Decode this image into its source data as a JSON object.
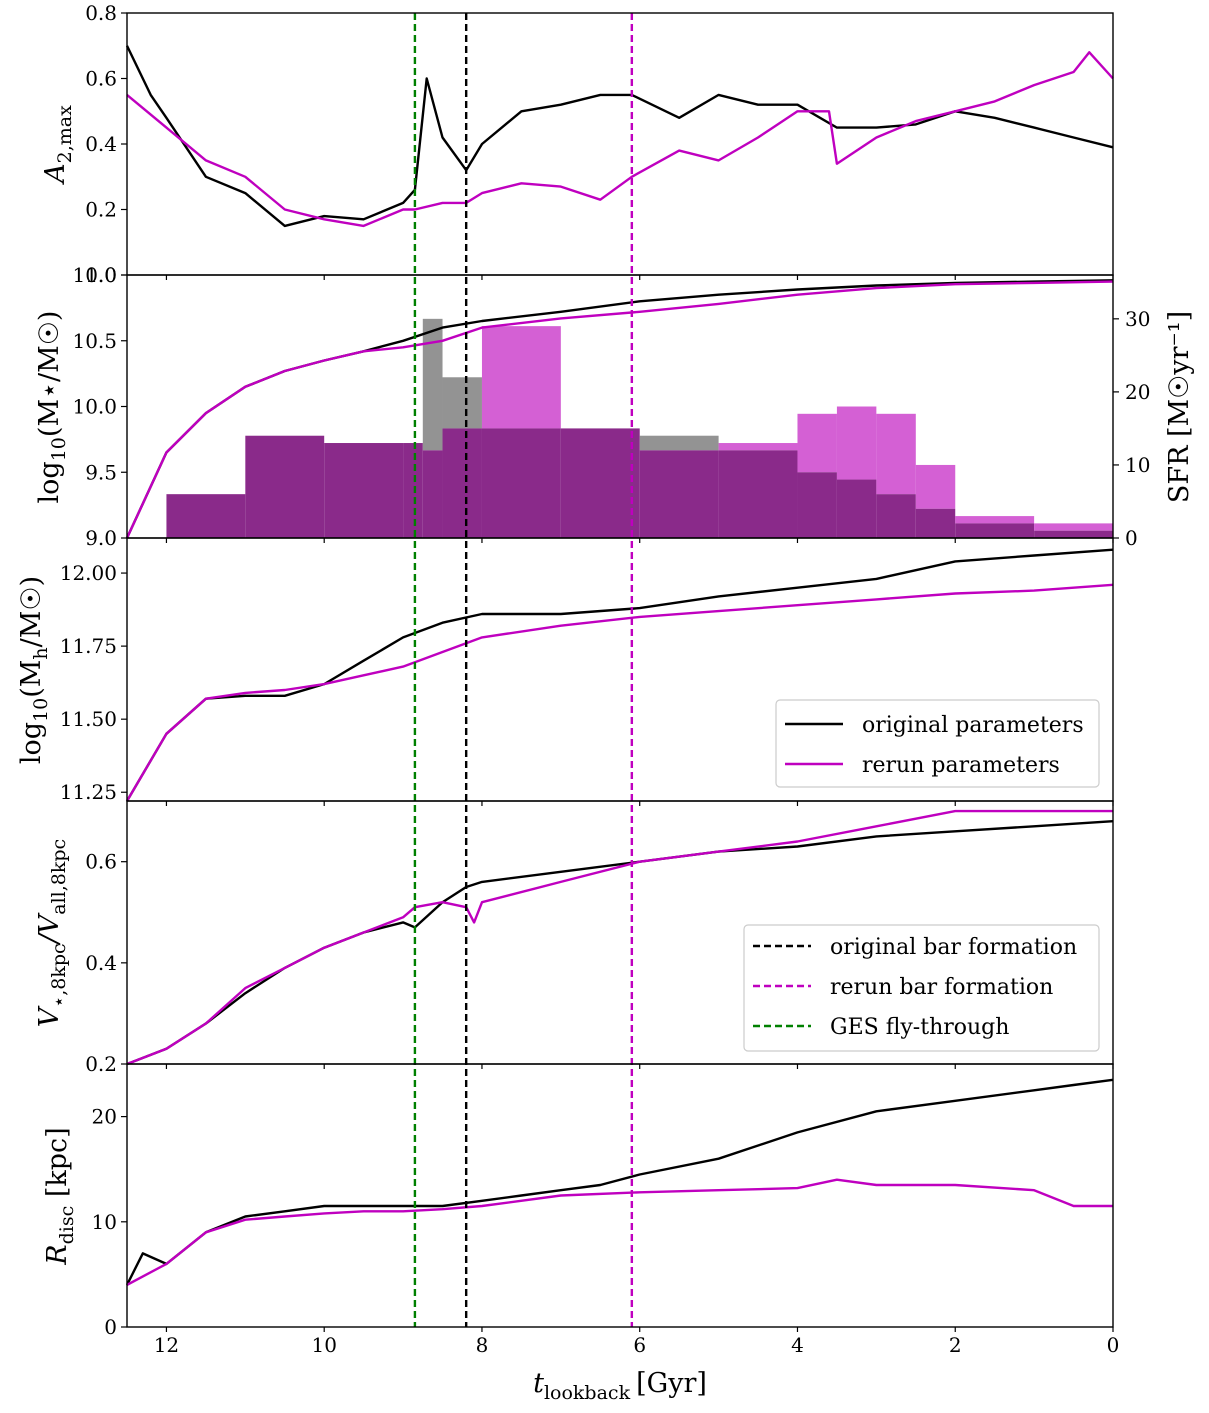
{
  "colors": {
    "original": "#000000",
    "rerun": "#bf00bf",
    "ges": "#008000",
    "hist_original": "#808080",
    "hist_rerun": "#cc44cc",
    "hist_overlap": "#8a2a8a"
  },
  "xaxis": {
    "label_main": "t",
    "label_sub": "lookback",
    "label_unit": "[Gyr]",
    "ticks": [
      "12",
      "10",
      "8",
      "6",
      "4",
      "2",
      "0"
    ],
    "tick_values": [
      12,
      10,
      8,
      6,
      4,
      2,
      0
    ],
    "xlim": [
      12.5,
      0
    ]
  },
  "vlines": [
    {
      "name": "GES fly-through",
      "x": 8.85,
      "color": "#008000"
    },
    {
      "name": "original bar formation",
      "x": 8.2,
      "color": "#000000"
    },
    {
      "name": "rerun bar formation",
      "x": 6.1,
      "color": "#bf00bf"
    }
  ],
  "panels": {
    "p1": {
      "ylabel_main": "A",
      "ylabel_sub": "2,max",
      "ticks": [
        "0.0",
        "0.2",
        "0.4",
        "0.6",
        "0.8"
      ],
      "tick_values": [
        0,
        0.2,
        0.4,
        0.6,
        0.8
      ],
      "ylim": [
        0,
        0.8
      ]
    },
    "p2": {
      "ylabel_main": "log",
      "ylabel_sub": "10",
      "ylabel_rest": "(M⋆/M☉)",
      "ticks": [
        "9.0",
        "9.5",
        "10.0",
        "10.5",
        "11.0"
      ],
      "tick_values": [
        9,
        9.5,
        10,
        10.5,
        11
      ],
      "ylim": [
        9,
        11
      ],
      "ylabel_right": "SFR [M☉yr⁻¹]",
      "ticks_right": [
        "0",
        "10",
        "20",
        "30"
      ],
      "tick_values_right": [
        0,
        10,
        20,
        30
      ],
      "ylim_right": [
        0,
        36
      ]
    },
    "p3": {
      "ylabel_main": "log",
      "ylabel_sub": "10",
      "ylabel_rest": "(M",
      "ylabel_sub2": "h",
      "ylabel_rest2": "/M☉)",
      "ticks": [
        "11.25",
        "11.50",
        "11.75",
        "12.00"
      ],
      "tick_values": [
        11.25,
        11.5,
        11.75,
        12
      ],
      "ylim": [
        11.22,
        12.12
      ]
    },
    "p4": {
      "ylabel_main": "V",
      "ylabel_sub": "⋆,8kpc",
      "ylabel_mid": "/V",
      "ylabel_sub2": "all,8kpc",
      "ticks": [
        "0.2",
        "0.4",
        "0.6"
      ],
      "tick_values": [
        0.2,
        0.4,
        0.6
      ],
      "ylim": [
        0.2,
        0.72
      ]
    },
    "p5": {
      "ylabel_main": "R",
      "ylabel_sub": "disc",
      "ylabel_rest": " [kpc]",
      "ticks": [
        "0",
        "10",
        "20"
      ],
      "tick_values": [
        0,
        10,
        20
      ],
      "ylim": [
        0,
        25
      ]
    }
  },
  "legend_lines": {
    "original": "original parameters",
    "rerun": "rerun parameters"
  },
  "legend_events": {
    "original_bar": "original bar formation",
    "rerun_bar": "rerun bar formation",
    "ges": "GES fly-through"
  },
  "chart_data": [
    {
      "type": "line",
      "title": "",
      "ylabel": "A_2,max",
      "xlabel": "t_lookback [Gyr]",
      "ylim": [
        0,
        0.8
      ],
      "series": [
        {
          "name": "original parameters",
          "x": [
            12.5,
            12.2,
            12,
            11.5,
            11,
            10.5,
            10,
            9.5,
            9,
            8.85,
            8.7,
            8.5,
            8.2,
            8,
            7.5,
            7,
            6.5,
            6.1,
            5.5,
            5,
            4.5,
            4,
            3.5,
            3,
            2.5,
            2,
            1.5,
            1,
            0.5,
            0
          ],
          "y": [
            0.7,
            0.55,
            0.48,
            0.3,
            0.25,
            0.15,
            0.18,
            0.17,
            0.22,
            0.26,
            0.6,
            0.42,
            0.32,
            0.4,
            0.5,
            0.52,
            0.55,
            0.55,
            0.48,
            0.55,
            0.52,
            0.52,
            0.45,
            0.45,
            0.46,
            0.5,
            0.48,
            0.45,
            0.42,
            0.39
          ]
        },
        {
          "name": "rerun parameters",
          "x": [
            12.5,
            12,
            11.5,
            11,
            10.5,
            10,
            9.5,
            9,
            8.85,
            8.5,
            8.2,
            8,
            7.5,
            7,
            6.5,
            6.1,
            5.5,
            5,
            4.5,
            4,
            3.6,
            3.5,
            3,
            2.5,
            2,
            1.5,
            1,
            0.5,
            0.3,
            0
          ],
          "y": [
            0.55,
            0.45,
            0.35,
            0.3,
            0.2,
            0.17,
            0.15,
            0.2,
            0.2,
            0.22,
            0.22,
            0.25,
            0.28,
            0.27,
            0.23,
            0.3,
            0.38,
            0.35,
            0.42,
            0.5,
            0.5,
            0.34,
            0.42,
            0.47,
            0.5,
            0.53,
            0.58,
            0.62,
            0.68,
            0.6
          ]
        }
      ]
    },
    {
      "type": "line",
      "title": "",
      "ylabel": "log10(M⋆/M☉)",
      "ylabel_right": "SFR [M☉yr⁻¹]",
      "ylim": [
        9,
        11
      ],
      "ylim_right": [
        0,
        36
      ],
      "series": [
        {
          "name": "original parameters",
          "x": [
            12.5,
            12,
            11.5,
            11,
            10.5,
            10,
            9.5,
            9,
            8.5,
            8,
            7,
            6,
            5,
            4,
            3,
            2,
            1,
            0
          ],
          "y": [
            9.0,
            9.65,
            9.95,
            10.15,
            10.27,
            10.35,
            10.42,
            10.5,
            10.6,
            10.65,
            10.72,
            10.8,
            10.85,
            10.89,
            10.92,
            10.94,
            10.95,
            10.96
          ]
        },
        {
          "name": "rerun parameters",
          "x": [
            12.5,
            12,
            11.5,
            11,
            10.5,
            10,
            9.5,
            9,
            8.5,
            8,
            7,
            6,
            5,
            4,
            3,
            2,
            1,
            0
          ],
          "y": [
            9.0,
            9.65,
            9.95,
            10.15,
            10.27,
            10.35,
            10.42,
            10.45,
            10.5,
            10.6,
            10.67,
            10.72,
            10.78,
            10.85,
            10.9,
            10.93,
            10.94,
            10.95
          ]
        }
      ],
      "histogram": {
        "x": [
          12,
          11,
          10,
          9,
          8.75,
          8.5,
          8,
          7,
          6,
          5,
          4,
          3.5,
          3,
          2.5,
          2,
          1,
          0
        ],
        "sfr_original": [
          6,
          14,
          13,
          13,
          30,
          22,
          15,
          15,
          14,
          12,
          9,
          8,
          6,
          4,
          2,
          1,
          1
        ],
        "sfr_rerun": [
          6,
          14,
          13,
          13,
          12,
          15,
          29,
          15,
          12,
          13,
          17,
          18,
          17,
          10,
          3,
          2,
          4
        ]
      }
    },
    {
      "type": "line",
      "title": "",
      "ylabel": "log10(Mh/M☉)",
      "ylim": [
        11.22,
        12.12
      ],
      "series": [
        {
          "name": "original parameters",
          "x": [
            12.5,
            12,
            11.5,
            11,
            10.5,
            10,
            9.5,
            9,
            8.5,
            8,
            7,
            6,
            5,
            4,
            3,
            2,
            1,
            0
          ],
          "y": [
            11.22,
            11.45,
            11.57,
            11.58,
            11.58,
            11.62,
            11.7,
            11.78,
            11.83,
            11.86,
            11.86,
            11.88,
            11.92,
            11.95,
            11.98,
            12.04,
            12.06,
            12.08
          ]
        },
        {
          "name": "rerun parameters",
          "x": [
            12.5,
            12,
            11.5,
            11,
            10.5,
            10,
            9.5,
            9,
            8.5,
            8,
            7,
            6,
            5,
            4,
            3,
            2,
            1,
            0
          ],
          "y": [
            11.22,
            11.45,
            11.57,
            11.59,
            11.6,
            11.62,
            11.65,
            11.68,
            11.73,
            11.78,
            11.82,
            11.85,
            11.87,
            11.89,
            11.91,
            11.93,
            11.94,
            11.96
          ]
        }
      ]
    },
    {
      "type": "line",
      "title": "",
      "ylabel": "V⋆,8kpc/Vall,8kpc",
      "ylim": [
        0.2,
        0.72
      ],
      "series": [
        {
          "name": "original parameters",
          "x": [
            12.5,
            12,
            11.5,
            11,
            10.5,
            10,
            9.5,
            9,
            8.85,
            8.5,
            8.2,
            8,
            7,
            6,
            5,
            4,
            3,
            2,
            1,
            0
          ],
          "y": [
            0.2,
            0.23,
            0.28,
            0.34,
            0.39,
            0.43,
            0.46,
            0.48,
            0.47,
            0.52,
            0.55,
            0.56,
            0.58,
            0.6,
            0.62,
            0.63,
            0.65,
            0.66,
            0.67,
            0.68
          ]
        },
        {
          "name": "rerun parameters",
          "x": [
            12.5,
            12,
            11.5,
            11,
            10.5,
            10,
            9.5,
            9,
            8.85,
            8.5,
            8.2,
            8.1,
            8,
            7,
            6,
            5,
            4,
            3,
            2,
            1,
            0
          ],
          "y": [
            0.2,
            0.23,
            0.28,
            0.35,
            0.39,
            0.43,
            0.46,
            0.49,
            0.51,
            0.52,
            0.51,
            0.48,
            0.52,
            0.56,
            0.6,
            0.62,
            0.64,
            0.67,
            0.7,
            0.7,
            0.7
          ]
        }
      ]
    },
    {
      "type": "line",
      "title": "",
      "ylabel": "R_disc [kpc]",
      "ylim": [
        0,
        25
      ],
      "series": [
        {
          "name": "original parameters",
          "x": [
            12.5,
            12.3,
            12,
            11.5,
            11,
            10.5,
            10,
            9.5,
            9,
            8.5,
            8,
            7.5,
            7,
            6.5,
            6,
            5,
            4,
            3,
            2,
            1,
            0.5,
            0
          ],
          "y": [
            4,
            7,
            6,
            9,
            10.5,
            11,
            11.5,
            11.5,
            11.5,
            11.5,
            12,
            12.5,
            13,
            13.5,
            14.5,
            16,
            18.5,
            20.5,
            21.5,
            22.5,
            23,
            23.5
          ]
        },
        {
          "name": "rerun parameters",
          "x": [
            12.5,
            12,
            11.5,
            11,
            10.5,
            10,
            9.5,
            9,
            8.5,
            8,
            7,
            6,
            5,
            4,
            3.5,
            3,
            2,
            1,
            0.5,
            0
          ],
          "y": [
            4,
            6,
            9,
            10.2,
            10.5,
            10.8,
            11,
            11,
            11.2,
            11.5,
            12.5,
            12.8,
            13,
            13.2,
            14,
            13.5,
            13.5,
            13,
            11.5,
            11.5
          ]
        }
      ]
    }
  ]
}
